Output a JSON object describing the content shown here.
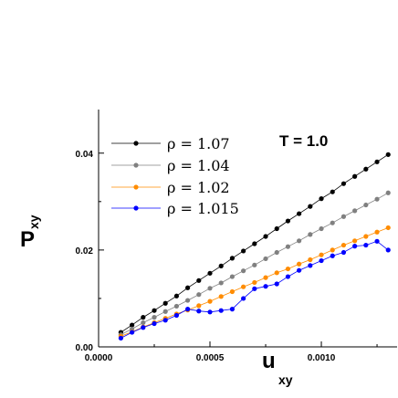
{
  "chart_data": {
    "type": "line",
    "annotation": "T = 1.0",
    "xlabel": {
      "main": "u",
      "sub": "xy"
    },
    "ylabel": {
      "main": "P",
      "sub": "xy"
    },
    "xlim": [
      0,
      0.00134
    ],
    "ylim": [
      0,
      0.049
    ],
    "x_ticks": [
      {
        "value": 0.0,
        "label": "0.0000"
      },
      {
        "value": 0.0005,
        "label": "0.0005"
      },
      {
        "value": 0.001,
        "label": "0.0010"
      }
    ],
    "y_ticks": [
      {
        "value": 0.0,
        "label": "0.00"
      },
      {
        "value": 0.02,
        "label": "0.02"
      },
      {
        "value": 0.04,
        "label": "0.04"
      }
    ],
    "x": [
      0.0001,
      0.00015,
      0.0002,
      0.00025,
      0.0003,
      0.00035,
      0.0004,
      0.00045,
      0.0005,
      0.00055,
      0.0006,
      0.00065,
      0.0007,
      0.00075,
      0.0008,
      0.00085,
      0.0009,
      0.00095,
      0.001,
      0.00105,
      0.0011,
      0.00115,
      0.0012,
      0.00125,
      0.0013
    ],
    "series": [
      {
        "name": "ρ = 1.07",
        "color": "#000000",
        "line_color": "#000000",
        "values": [
          0.003,
          0.0045,
          0.0061,
          0.0075,
          0.009,
          0.0105,
          0.0122,
          0.0137,
          0.0152,
          0.0167,
          0.0183,
          0.0198,
          0.0213,
          0.0228,
          0.0244,
          0.026,
          0.0275,
          0.029,
          0.0306,
          0.032,
          0.0337,
          0.0352,
          0.0367,
          0.0382,
          0.0397
        ]
      },
      {
        "name": "ρ = 1.04",
        "color": "#808080",
        "line_color": "#808080",
        "values": [
          0.0025,
          0.0037,
          0.005,
          0.0061,
          0.0073,
          0.0084,
          0.0096,
          0.0108,
          0.0121,
          0.0132,
          0.0145,
          0.0157,
          0.0169,
          0.0182,
          0.0195,
          0.0207,
          0.0219,
          0.0232,
          0.0244,
          0.0256,
          0.0269,
          0.0281,
          0.0293,
          0.0305,
          0.0318
        ]
      },
      {
        "name": "ρ = 1.02",
        "color": "#ff8c00",
        "line_color": "#ff8c00",
        "values": [
          0.0022,
          0.0031,
          0.0041,
          0.005,
          0.0059,
          0.0068,
          0.0076,
          0.0085,
          0.0094,
          0.0104,
          0.0114,
          0.0124,
          0.0133,
          0.0143,
          0.0153,
          0.0161,
          0.0171,
          0.018,
          0.019,
          0.02,
          0.021,
          0.0219,
          0.0228,
          0.0237,
          0.0246
        ]
      },
      {
        "name": "ρ = 1.015",
        "color": "#0000ff",
        "line_color": "#0000ff",
        "values": [
          0.0018,
          0.003,
          0.004,
          0.0048,
          0.0055,
          0.0065,
          0.0078,
          0.0074,
          0.0072,
          0.0075,
          0.0078,
          0.01,
          0.012,
          0.0125,
          0.013,
          0.0145,
          0.0158,
          0.0168,
          0.0178,
          0.0188,
          0.0195,
          0.0208,
          0.021,
          0.0218,
          0.02
        ]
      }
    ],
    "legend_position": "top-left"
  }
}
